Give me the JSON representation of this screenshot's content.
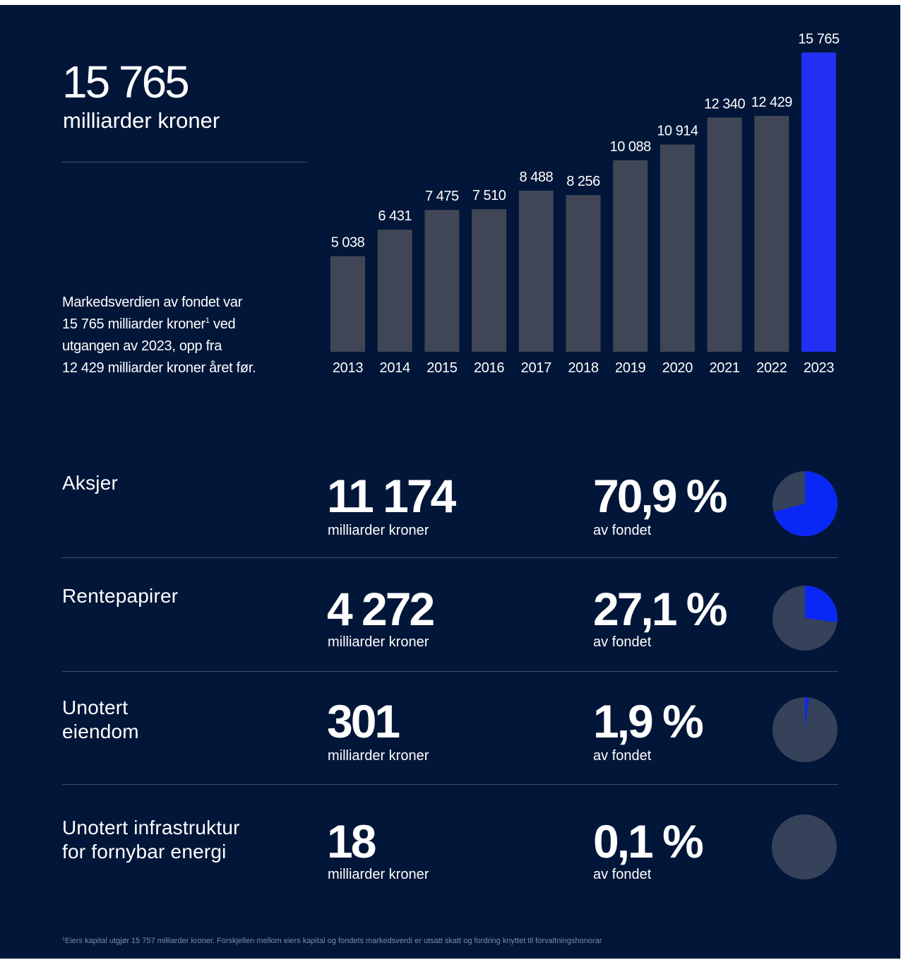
{
  "headline": {
    "value": "15 765",
    "unit": "milliarder kroner"
  },
  "summary": {
    "line1": "Markedsverdien av fondet var",
    "line2_pre": "15 765 milliarder kroner",
    "line2_sup": "1",
    "line2_post": " ved",
    "line3": "utgangen av 2023, opp fra",
    "line4": "12 429 milliarder kroner året før."
  },
  "colors": {
    "background": "#011638",
    "bar": "#404656",
    "highlight": "#2330f4",
    "pie_base": "#36415a",
    "pie_slice": "#0a28f5",
    "divider": "#3f4f6c"
  },
  "chart_data": {
    "type": "bar",
    "categories": [
      "2013",
      "2014",
      "2015",
      "2016",
      "2017",
      "2018",
      "2019",
      "2020",
      "2021",
      "2022",
      "2023"
    ],
    "values": [
      5038,
      6431,
      7475,
      7510,
      8488,
      8256,
      10088,
      10914,
      12340,
      12429,
      15765
    ],
    "value_labels": [
      "5 038",
      "6 431",
      "7 475",
      "7 510",
      "8 488",
      "8 256",
      "10 088",
      "10 914",
      "12 340",
      "12 429",
      "15 765"
    ],
    "highlight_category": "2023",
    "title": "",
    "xlabel": "",
    "ylabel": "",
    "ylim": [
      0,
      16000
    ],
    "grid": false
  },
  "rows": [
    {
      "title_lines": [
        "Aksjer"
      ],
      "value": "11 174",
      "unit": "milliarder kroner",
      "pct_label": "70,9 %",
      "pct_unit": "av fondet",
      "share": 70.9
    },
    {
      "title_lines": [
        "Rentepapirer"
      ],
      "value": "4 272",
      "unit": "milliarder kroner",
      "pct_label": "27,1 %",
      "pct_unit": "av fondet",
      "share": 27.1
    },
    {
      "title_lines": [
        "Unotert",
        "eiendom"
      ],
      "value": "301",
      "unit": "milliarder kroner",
      "pct_label": "1,9 %",
      "pct_unit": "av fondet",
      "share": 1.9
    },
    {
      "title_lines": [
        "Unotert infrastruktur",
        "for fornybar energi"
      ],
      "value": "18",
      "unit": "milliarder kroner",
      "pct_label": "0,1 %",
      "pct_unit": "av fondet",
      "share": 0.1
    }
  ],
  "footnote": {
    "sup": "1",
    "text": "Eiers kapital utgjør 15 757 milliarder kroner. Forskjellen mellom eiers kapital og fondets markedsverdi er utsatt skatt og fordring knyttet til forvaltningshonorar"
  }
}
